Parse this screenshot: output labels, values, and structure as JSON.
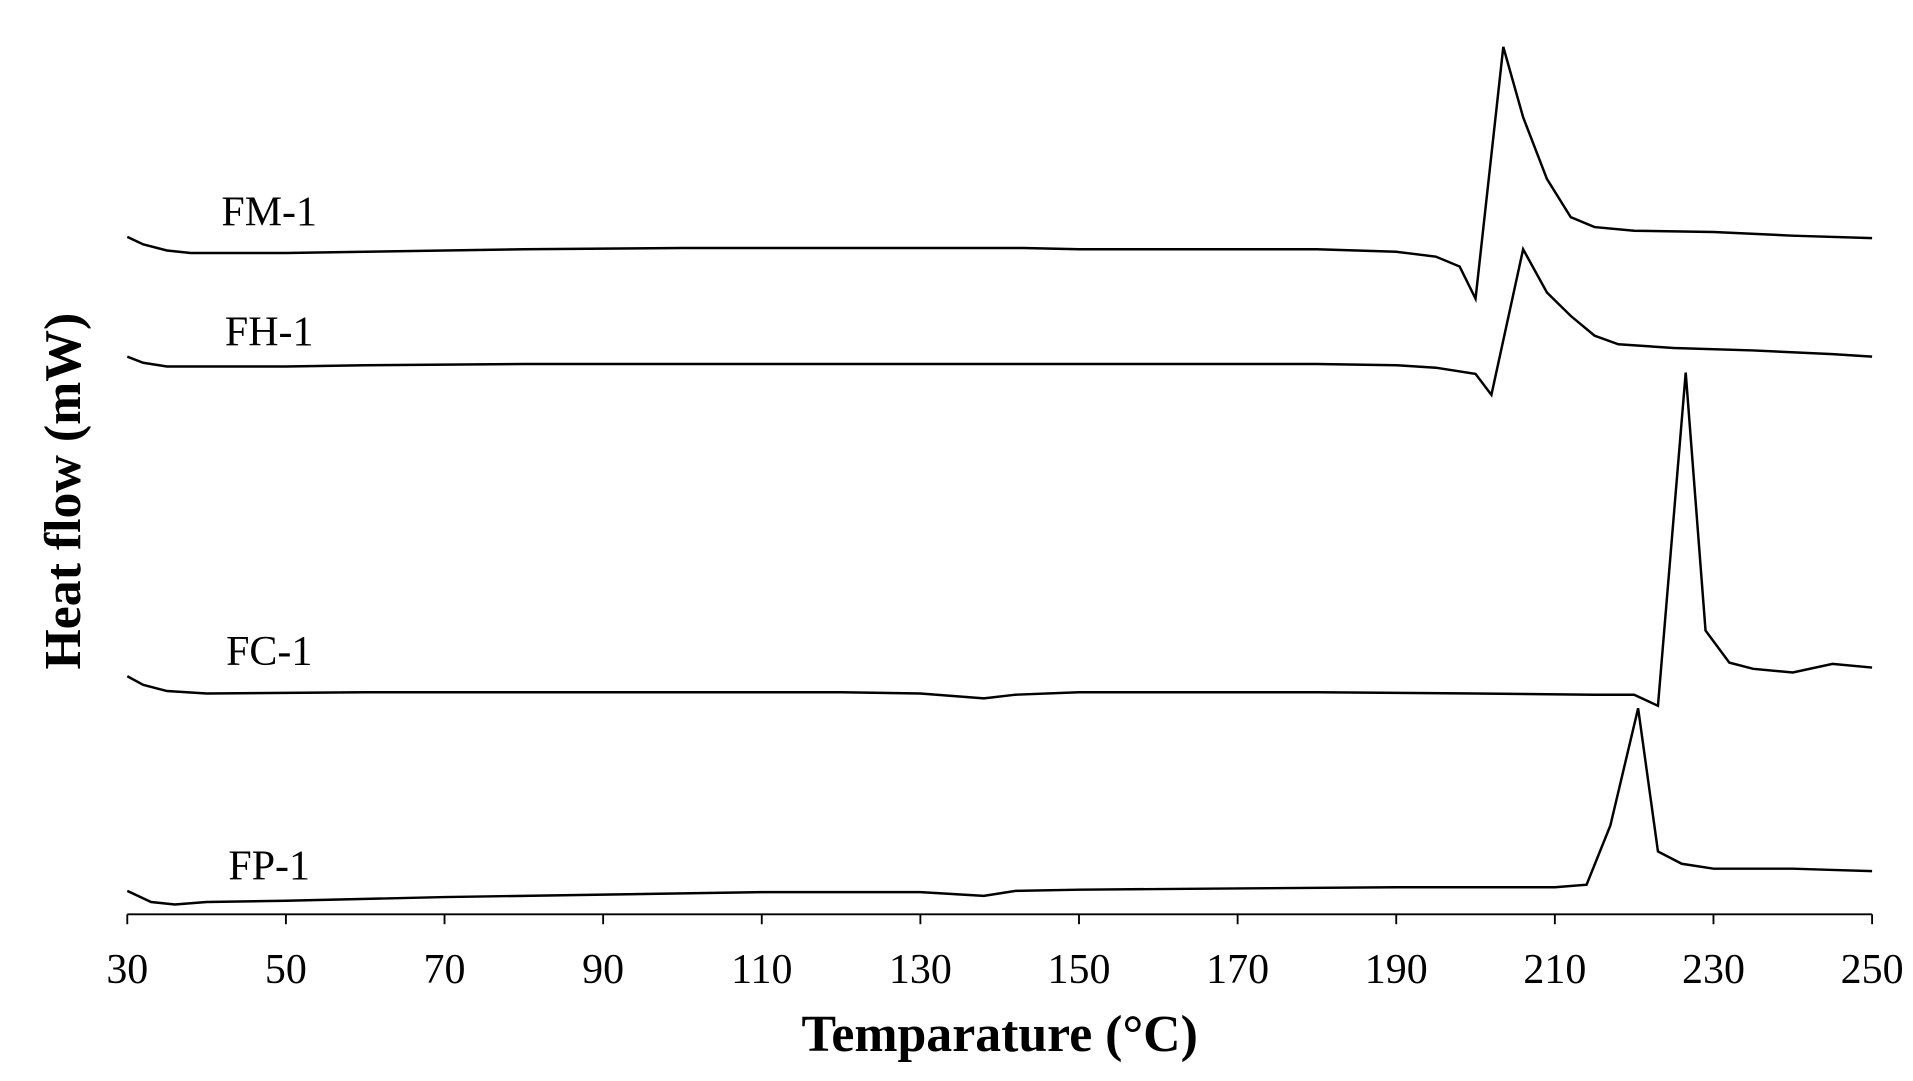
{
  "chart_data": {
    "type": "line",
    "x_label": "Temparature (°C)",
    "y_label": "Heat flow (mW)",
    "xlim": [
      30,
      250
    ],
    "xticks": [
      30,
      50,
      70,
      90,
      110,
      130,
      150,
      170,
      190,
      210,
      230,
      250
    ],
    "ylim": [
      0,
      741
    ],
    "series": [
      {
        "name": "FM-1",
        "color": "#000000",
        "x": [
          30,
          32,
          35,
          38,
          50,
          60,
          70,
          80,
          100,
          130,
          143,
          150,
          180,
          190,
          195,
          198,
          200,
          203.5,
          206,
          209,
          212,
          215,
          220,
          230,
          240,
          250
        ],
        "values": [
          549,
          543,
          538,
          536,
          536,
          537,
          538,
          539,
          540,
          540,
          540,
          539,
          539,
          537,
          533,
          525,
          499,
          703,
          646,
          596,
          565,
          557,
          554,
          553,
          550,
          548
        ]
      },
      {
        "name": "FH-1",
        "color": "#000000",
        "x": [
          30,
          32,
          35,
          40,
          50,
          60,
          80,
          100,
          130,
          150,
          180,
          190,
          195,
          200,
          202,
          206,
          209,
          212,
          215,
          218,
          225,
          235,
          245,
          250
        ],
        "values": [
          452,
          447,
          444,
          444,
          444,
          445,
          446,
          446,
          446,
          446,
          446,
          445,
          443,
          438,
          421,
          539,
          504,
          485,
          469,
          462,
          459,
          457,
          454,
          452
        ]
      },
      {
        "name": "FC-1",
        "color": "#000000",
        "x": [
          30,
          32,
          35,
          40,
          60,
          80,
          100,
          120,
          130,
          138,
          142,
          150,
          180,
          200,
          215,
          220,
          223,
          226.5,
          229,
          232,
          235,
          240,
          245,
          250
        ],
        "values": [
          193,
          186,
          181,
          179,
          180,
          180,
          180,
          180,
          179,
          175,
          178,
          180,
          180,
          179,
          178,
          178,
          169,
          439,
          230,
          204,
          199,
          196,
          203,
          200
        ]
      },
      {
        "name": "FP-1",
        "color": "#000000",
        "x": [
          30,
          33,
          36,
          40,
          50,
          70,
          90,
          110,
          130,
          138,
          142,
          150,
          170,
          190,
          210,
          214,
          217,
          220.5,
          223,
          226,
          230,
          240,
          245,
          250
        ],
        "values": [
          19,
          10,
          8,
          10,
          11,
          14,
          16,
          18,
          18,
          15,
          19,
          20,
          21,
          22,
          22,
          24,
          72,
          167,
          51,
          41,
          37,
          37,
          36,
          35
        ]
      }
    ]
  }
}
